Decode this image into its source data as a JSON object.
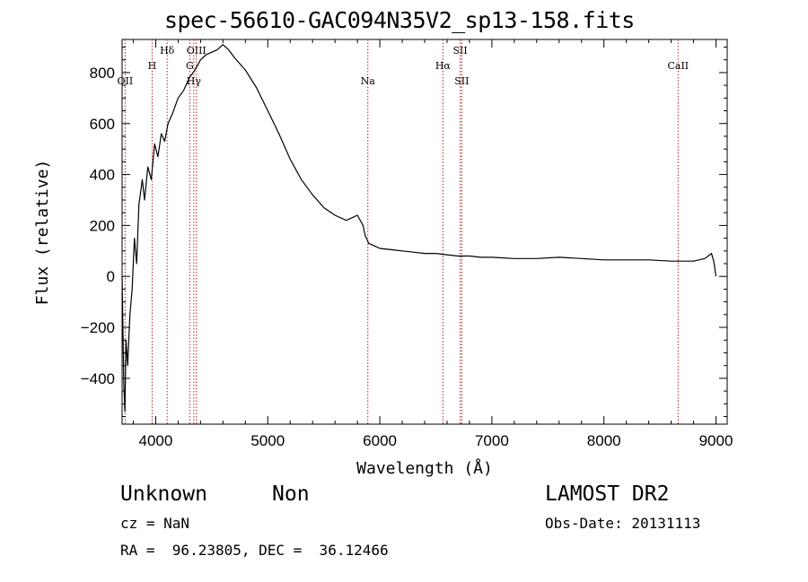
{
  "chart_data": {
    "type": "line",
    "title": "spec-56610-GAC094N35V2_sp13-158.fits",
    "xlabel": "Wavelength (Å)",
    "ylabel": "Flux (relative)",
    "xlim": [
      3700,
      9100
    ],
    "ylim": [
      -580,
      930
    ],
    "grid": false,
    "x_ticks": [
      4000,
      5000,
      6000,
      7000,
      8000,
      9000
    ],
    "y_ticks": [
      -400,
      -200,
      0,
      200,
      400,
      600,
      800
    ],
    "series": [
      {
        "x": [
          3700,
          3715,
          3725,
          3735,
          3750,
          3770,
          3790,
          3810,
          3830,
          3850,
          3880,
          3900,
          3930,
          3960,
          3990,
          4020,
          4050,
          4080,
          4110,
          4150,
          4200,
          4250,
          4300,
          4350,
          4400,
          4450,
          4500,
          4550,
          4600,
          4650,
          4700,
          4800,
          4900,
          5000,
          5100,
          5200,
          5300,
          5400,
          5500,
          5600,
          5700,
          5750,
          5800,
          5850,
          5870,
          5900,
          5950,
          6000,
          6100,
          6200,
          6300,
          6400,
          6500,
          6600,
          6700,
          6800,
          6900,
          7000,
          7200,
          7400,
          7600,
          7800,
          8000,
          8200,
          8400,
          8600,
          8800,
          8900,
          8960,
          8980,
          9000
        ],
        "y": [
          0,
          -420,
          -530,
          -250,
          -350,
          -150,
          -50,
          150,
          50,
          280,
          380,
          300,
          430,
          380,
          520,
          470,
          560,
          530,
          600,
          640,
          700,
          730,
          780,
          810,
          850,
          870,
          880,
          890,
          910,
          890,
          860,
          810,
          740,
          650,
          560,
          460,
          380,
          320,
          270,
          240,
          220,
          230,
          240,
          200,
          160,
          130,
          120,
          110,
          105,
          100,
          95,
          90,
          90,
          85,
          80,
          80,
          75,
          75,
          70,
          70,
          75,
          70,
          65,
          65,
          65,
          60,
          60,
          70,
          90,
          60,
          0
        ]
      }
    ],
    "annotations": [
      {
        "label": "OII",
        "x": 3727
      },
      {
        "label": "H",
        "x": 3968
      },
      {
        "label": "Hδ",
        "x": 4102
      },
      {
        "label": "G",
        "x": 4304
      },
      {
        "label": "Hγ",
        "x": 4340
      },
      {
        "label": "OIII",
        "x": 4363
      },
      {
        "label": "Na",
        "x": 5893
      },
      {
        "label": "Hα",
        "x": 6563
      },
      {
        "label": "SII",
        "x": 6717
      },
      {
        "label": "SII",
        "x": 6731
      },
      {
        "label": "CaII",
        "x": 8662
      }
    ]
  },
  "footer": {
    "class_label": "Unknown",
    "subclass_label": "Non",
    "survey_label": "LAMOST DR2",
    "redshift_text": "cz = NaN",
    "obs_date_text": "Obs-Date: 20131113",
    "coords_text": "RA =  96.23805, DEC =  36.12466"
  }
}
